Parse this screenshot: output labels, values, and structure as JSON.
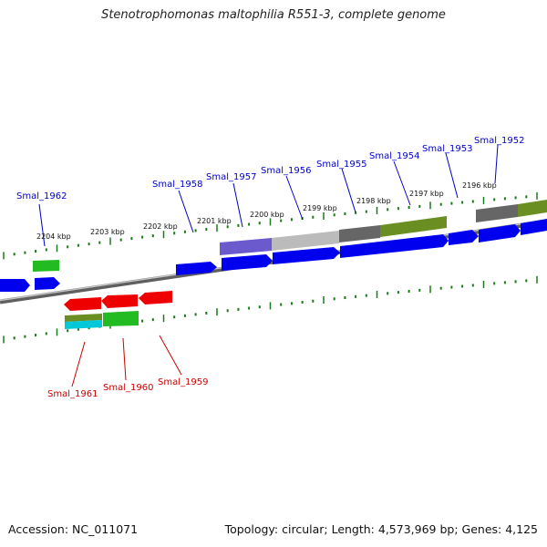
{
  "title": "Stenotrophomonas maltophilia R551-3, complete genome",
  "footer": {
    "accession": "Accession: NC_011071",
    "summary": "Topology: circular; Length: 4,573,969 bp; Genes: 4,125"
  },
  "ruler": {
    "labels": [
      "2204 kbp",
      "2203 kbp",
      "2202 kbp",
      "2201 kbp",
      "2200 kbp",
      "2199 kbp",
      "2198 kbp",
      "2197 kbp",
      "2196 kbp"
    ]
  },
  "gene_labels": {
    "forward": [
      "Smal_1962",
      "Smal_1958",
      "Smal_1957",
      "Smal_1956",
      "Smal_1955",
      "Smal_1954",
      "Smal_1953",
      "Smal_1952"
    ],
    "reverse": [
      "Smal_1961",
      "Smal_1960",
      "Smal_1959"
    ]
  },
  "colors": {
    "forward_label": "#0000cc",
    "reverse_label": "#cc0000",
    "tick": "#1a7a1a",
    "backbone": "#808080",
    "blue": "#0000ee",
    "red": "#ee0000",
    "green": "#22bb22",
    "olive": "#6b8e23",
    "grey": "#666666",
    "light_grey": "#bbbbbb",
    "purple": "#6a5acd",
    "cyan": "#00c8d8"
  }
}
